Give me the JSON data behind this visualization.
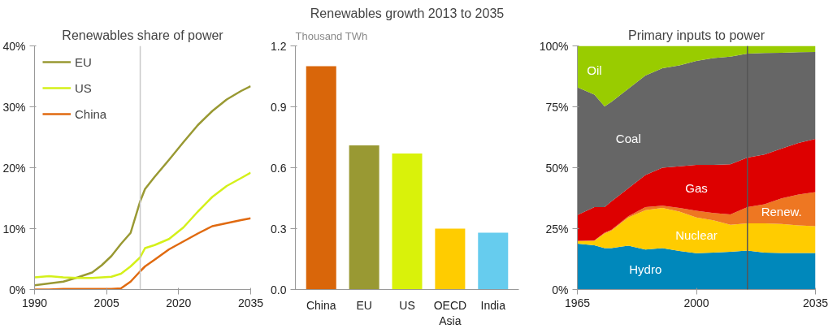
{
  "chart_data": [
    {
      "type": "line",
      "title": "Renewables share of power",
      "x": [
        1990,
        1993,
        1996,
        1999,
        2002,
        2004,
        2006,
        2008,
        2010,
        2012,
        2013,
        2015,
        2018,
        2021,
        2024,
        2027,
        2030,
        2033,
        2035
      ],
      "series": [
        {
          "name": "EU",
          "color": "#999933",
          "values": [
            0.7,
            1.0,
            1.3,
            2.0,
            2.8,
            4.0,
            5.5,
            7.5,
            9.3,
            14.5,
            16.5,
            18.5,
            21.3,
            24.2,
            27,
            29.3,
            31.2,
            32.6,
            33.4
          ]
        },
        {
          "name": "US",
          "color": "#d4f01a",
          "values": [
            2.0,
            2.2,
            2.0,
            1.9,
            1.9,
            2.0,
            2.1,
            2.6,
            3.8,
            5.3,
            6.8,
            7.3,
            8.3,
            10.2,
            12.8,
            15.2,
            17,
            18.3,
            19.2
          ]
        },
        {
          "name": "China",
          "color": "#e06a10",
          "values": [
            0,
            0,
            0.1,
            0.1,
            0.1,
            0.1,
            0.1,
            0.2,
            1.3,
            3.0,
            3.8,
            4.9,
            6.6,
            7.9,
            9.2,
            10.4,
            10.9,
            11.4,
            11.7
          ]
        }
      ],
      "xlim": [
        1990,
        2035
      ],
      "ylim": [
        0,
        40
      ],
      "xticks": [
        1990,
        2005,
        2020,
        2035
      ],
      "yticks": [
        {
          "value": 0,
          "label": "0%"
        },
        {
          "value": 10,
          "label": "10%"
        },
        {
          "value": 20,
          "label": "20%"
        },
        {
          "value": 30,
          "label": "30%"
        },
        {
          "value": 40,
          "label": "40%"
        }
      ],
      "ref_lines": [
        {
          "axis": "x",
          "value": 2012,
          "label": null,
          "color": "#c8c8c8"
        }
      ],
      "legend": "top left",
      "grid": false
    },
    {
      "type": "bar",
      "title": "Renewables growth 2013 to 2035",
      "ylabel": "Thousand TWh",
      "categories": [
        "China",
        "EU",
        "US",
        "OECD Asia",
        "India"
      ],
      "values": [
        1.1,
        0.71,
        0.67,
        0.3,
        0.28
      ],
      "colors": [
        "#d9660a",
        "#999933",
        "#d9f20a",
        "#ffcc00",
        "#66ccee"
      ],
      "ylim": [
        0,
        1.2
      ],
      "yticks": [
        {
          "value": 0,
          "label": "0.0"
        },
        0.3,
        0.6,
        0.9,
        1.2
      ],
      "grid": false
    },
    {
      "type": "area",
      "stacked": true,
      "title": "Primary inputs to power",
      "x": [
        1965,
        1970,
        1973,
        1975,
        1980,
        1985,
        1990,
        1995,
        2000,
        2005,
        2010,
        2015,
        2020,
        2025,
        2030,
        2035
      ],
      "series": [
        {
          "name": "Hydro",
          "color": "#0088bb",
          "values": [
            18.8,
            18.2,
            17,
            17,
            18,
            16.4,
            17,
            15.8,
            14.9,
            15.2,
            15.5,
            16,
            15.2,
            15,
            15,
            15
          ]
        },
        {
          "name": "Nuclear",
          "color": "#ffcc00",
          "values": [
            1.0,
            1.8,
            6,
            7.2,
            11.6,
            16.2,
            16.5,
            16.2,
            14.7,
            13.2,
            11.1,
            11.2,
            12,
            11.9,
            11.3,
            11
          ]
        },
        {
          "name": "Renew.",
          "color": "#ee7722",
          "values": [
            0.2,
            0.2,
            0.3,
            0.3,
            0.5,
            1.2,
            0.9,
            1.5,
            2.7,
            3.0,
            4.2,
            6.6,
            7.8,
            10.5,
            12.7,
            14
          ]
        },
        {
          "name": "Gas",
          "color": "#dd0000",
          "values": [
            10.6,
            13.6,
            10.5,
            11.7,
            11.5,
            13.2,
            15.6,
            17.1,
            18.9,
            19.8,
            20.6,
            20.4,
            20.4,
            20.4,
            21.2,
            21.8
          ]
        },
        {
          "name": "Coal",
          "color": "#666666",
          "values": [
            52.4,
            46.2,
            41.4,
            40.8,
            40.8,
            40.8,
            40.8,
            41.4,
            42.6,
            43.8,
            44.2,
            42.6,
            41.7,
            39.4,
            37.2,
            35.7
          ]
        },
        {
          "name": "Oil",
          "color": "#99cc00",
          "values": [
            17,
            20,
            24.8,
            23,
            17.6,
            12.2,
            9.2,
            8,
            6.2,
            5,
            4.4,
            3.2,
            2.9,
            2.8,
            2.6,
            2.5
          ]
        }
      ],
      "xlim": [
        1965,
        2035
      ],
      "ylim": [
        0,
        100
      ],
      "xticks": [
        1965,
        2000,
        2035
      ],
      "yticks": [
        {
          "value": 0,
          "label": "0%"
        },
        {
          "value": 25,
          "label": "25%"
        },
        {
          "value": 50,
          "label": "50%"
        },
        {
          "value": 75,
          "label": "75%"
        },
        {
          "value": 100,
          "label": "100%"
        }
      ],
      "ref_lines": [
        {
          "axis": "x",
          "value": 2015,
          "label": null,
          "color": "#555555"
        }
      ],
      "grid": false
    }
  ]
}
